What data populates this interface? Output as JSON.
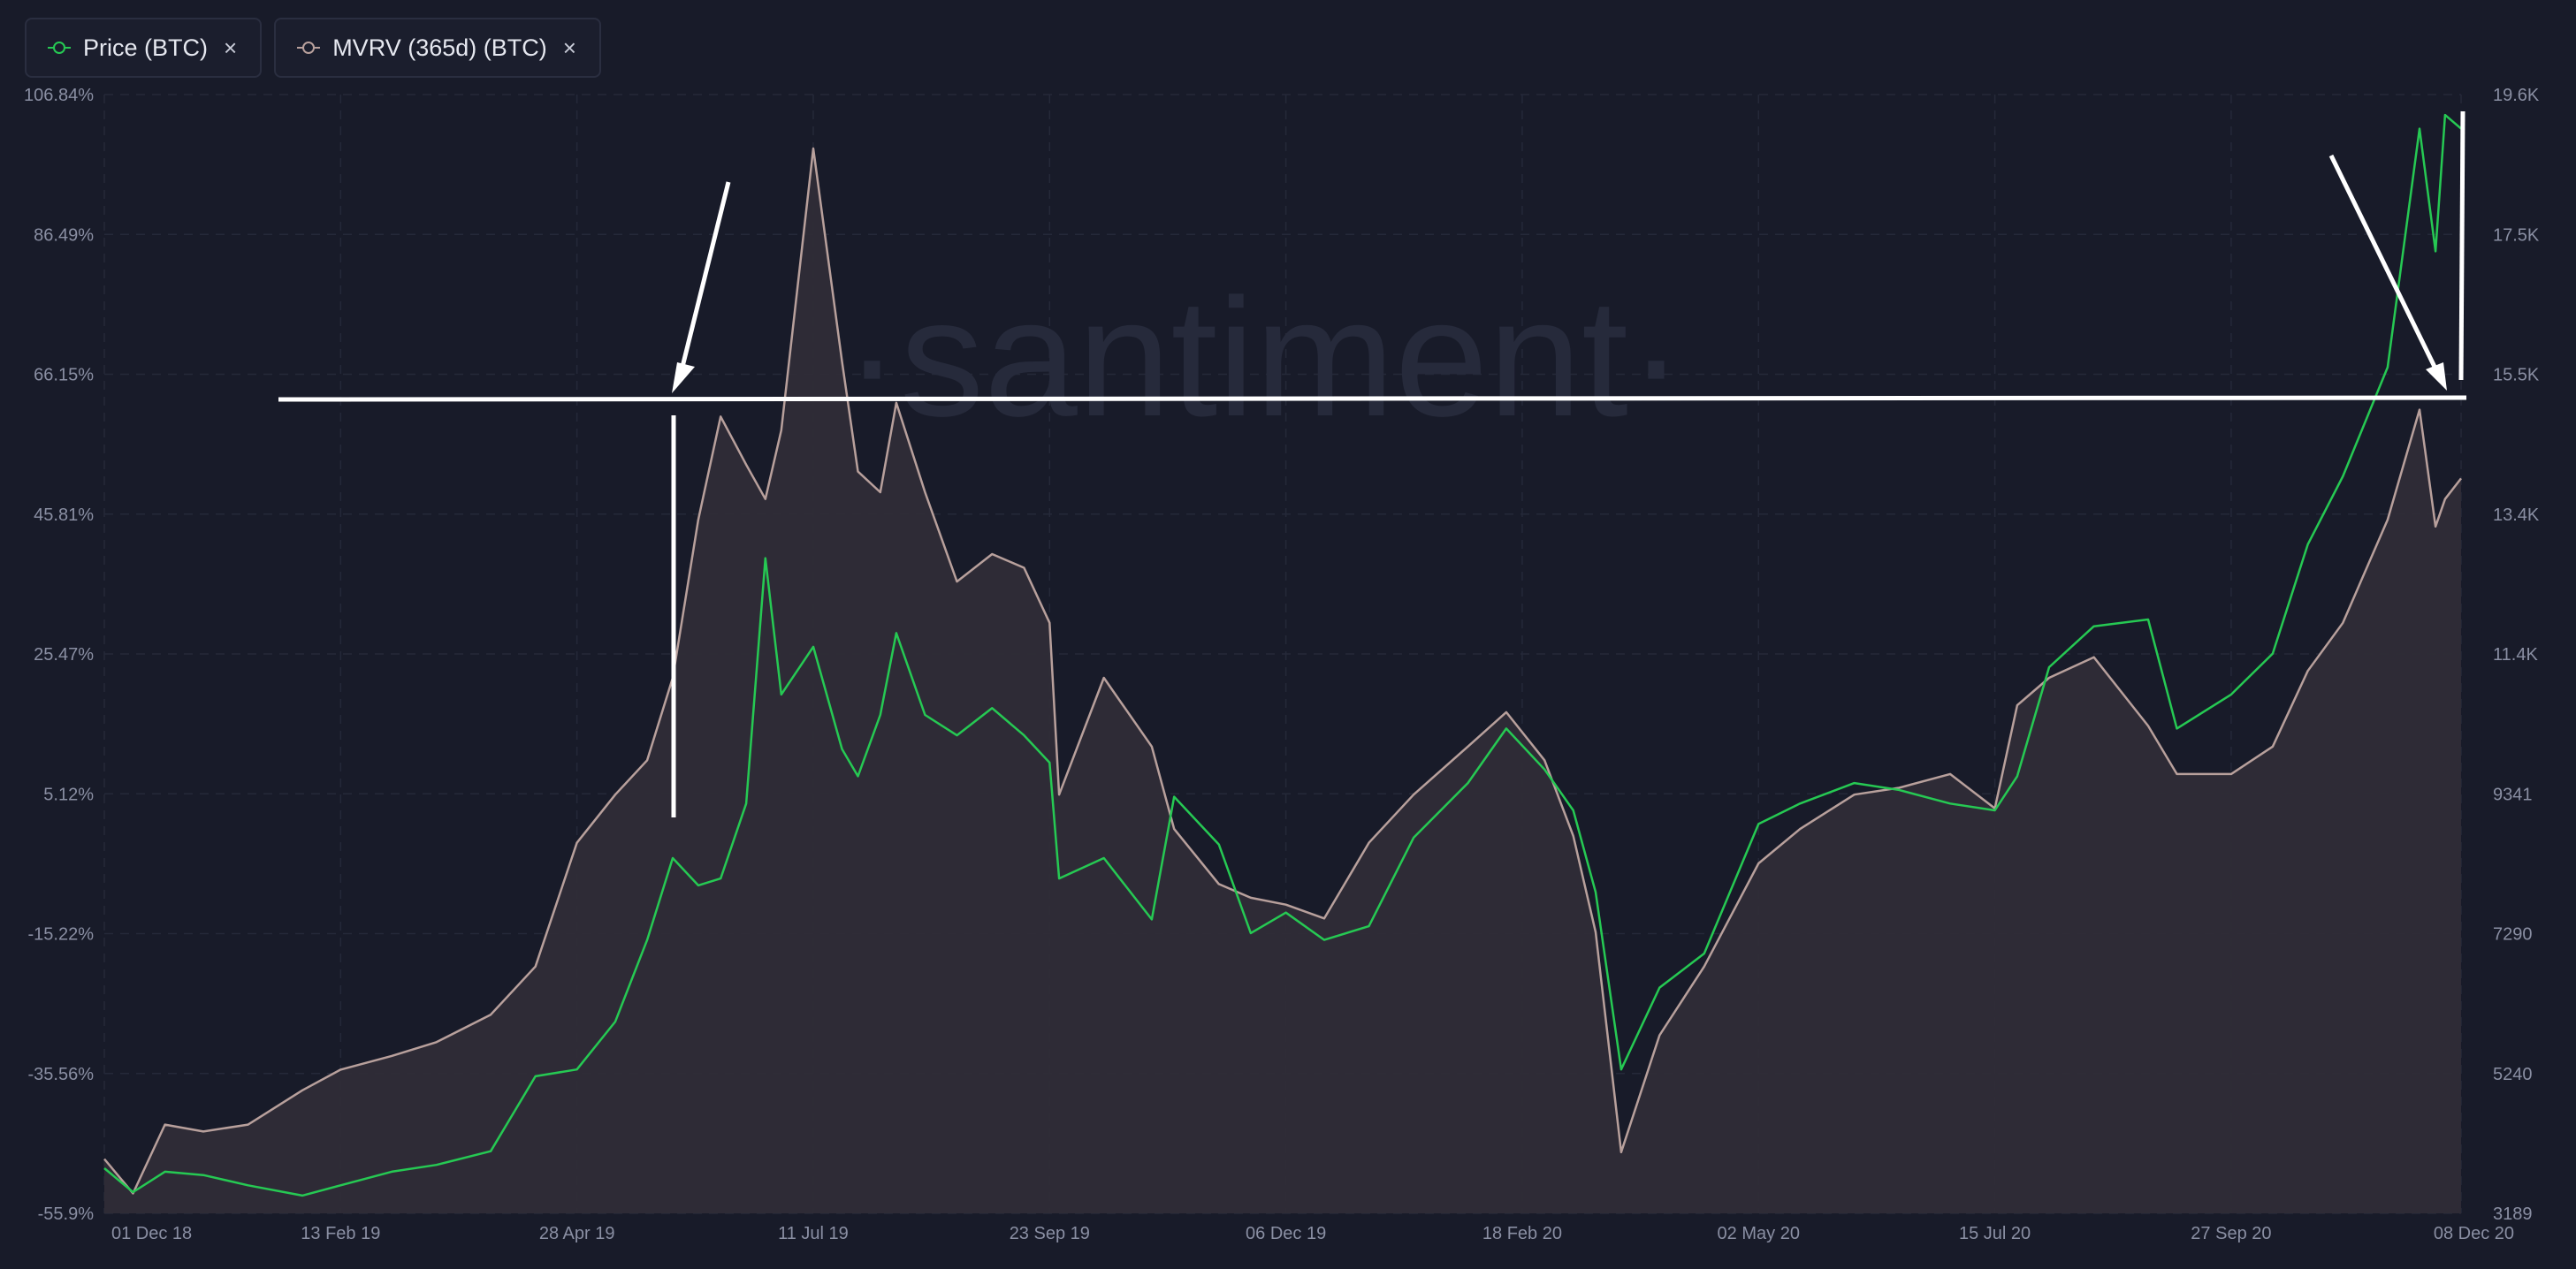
{
  "legend": [
    {
      "label": "Price (BTC)",
      "color": "#26c953",
      "close": "×"
    },
    {
      "label": "MVRV (365d) (BTC)",
      "color": "#b8a09c",
      "close": "×"
    }
  ],
  "watermark": "·santiment·",
  "chart_data": {
    "type": "line",
    "left_axis_ticks": [
      "106.84%",
      "86.49%",
      "66.15%",
      "45.81%",
      "25.47%",
      "5.12%",
      "-15.22%",
      "-35.56%",
      "-55.9%"
    ],
    "right_axis_ticks": [
      "19.6K",
      "17.5K",
      "15.5K",
      "13.4K",
      "11.4K",
      "9341",
      "7290",
      "5240",
      "3189"
    ],
    "x_ticks": [
      "01 Dec 18",
      "13 Feb 19",
      "28 Apr 19",
      "11 Jul 19",
      "23 Sep 19",
      "06 Dec 19",
      "18 Feb 20",
      "02 May 20",
      "15 Jul 20",
      "27 Sep 20",
      "08 Dec 20"
    ],
    "y_left_range": [
      -55.9,
      106.84
    ],
    "y_right_range": [
      3189,
      19600
    ],
    "grid": true,
    "series": [
      {
        "name": "MVRV (365d) (BTC)",
        "axis": "left",
        "color": "#b8a09c",
        "x": [
          "2018-12-01",
          "2018-12-10",
          "2018-12-20",
          "2019-01-01",
          "2019-01-15",
          "2019-02-01",
          "2019-02-13",
          "2019-03-01",
          "2019-03-15",
          "2019-04-01",
          "2019-04-15",
          "2019-04-28",
          "2019-05-10",
          "2019-05-20",
          "2019-05-28",
          "2019-06-05",
          "2019-06-12",
          "2019-06-20",
          "2019-06-26",
          "2019-07-01",
          "2019-07-11",
          "2019-07-20",
          "2019-07-25",
          "2019-08-01",
          "2019-08-06",
          "2019-08-15",
          "2019-08-25",
          "2019-09-05",
          "2019-09-15",
          "2019-09-23",
          "2019-09-26",
          "2019-10-10",
          "2019-10-25",
          "2019-11-01",
          "2019-11-15",
          "2019-11-25",
          "2019-12-06",
          "2019-12-18",
          "2020-01-01",
          "2020-01-15",
          "2020-02-01",
          "2020-02-13",
          "2020-02-25",
          "2020-03-05",
          "2020-03-12",
          "2020-03-20",
          "2020-04-01",
          "2020-04-15",
          "2020-05-02",
          "2020-05-15",
          "2020-06-01",
          "2020-06-15",
          "2020-07-01",
          "2020-07-15",
          "2020-07-22",
          "2020-08-01",
          "2020-08-15",
          "2020-09-01",
          "2020-09-10",
          "2020-09-27",
          "2020-10-10",
          "2020-10-21",
          "2020-11-01",
          "2020-11-15",
          "2020-11-25",
          "2020-11-30",
          "2020-12-03",
          "2020-12-08"
        ],
        "values": [
          -48,
          -53,
          -43,
          -44,
          -43,
          -38,
          -35,
          -33,
          -31,
          -27,
          -20,
          -2,
          5,
          10,
          22,
          45,
          60,
          53,
          48,
          58,
          99,
          68,
          52,
          49,
          62,
          49,
          36,
          40,
          38,
          30,
          5,
          22,
          12,
          0,
          -8,
          -10,
          -11,
          -13,
          -2,
          5,
          12,
          17,
          10,
          -1,
          -15,
          -47,
          -30,
          -20,
          -5,
          0,
          5,
          6,
          8,
          3,
          18,
          22,
          25,
          15,
          8,
          8,
          12,
          23,
          30,
          45,
          61,
          44,
          48,
          51
        ]
      },
      {
        "name": "Price (BTC)",
        "axis": "right",
        "color": "#26c953",
        "x": [
          "2018-12-01",
          "2018-12-10",
          "2018-12-20",
          "2019-01-01",
          "2019-01-15",
          "2019-02-01",
          "2019-02-13",
          "2019-03-01",
          "2019-03-15",
          "2019-04-01",
          "2019-04-15",
          "2019-04-28",
          "2019-05-10",
          "2019-05-20",
          "2019-05-28",
          "2019-06-05",
          "2019-06-12",
          "2019-06-20",
          "2019-06-26",
          "2019-07-01",
          "2019-07-11",
          "2019-07-20",
          "2019-07-25",
          "2019-08-01",
          "2019-08-06",
          "2019-08-15",
          "2019-08-25",
          "2019-09-05",
          "2019-09-15",
          "2019-09-23",
          "2019-09-26",
          "2019-10-10",
          "2019-10-25",
          "2019-11-01",
          "2019-11-15",
          "2019-11-25",
          "2019-12-06",
          "2019-12-18",
          "2020-01-01",
          "2020-01-15",
          "2020-02-01",
          "2020-02-13",
          "2020-02-25",
          "2020-03-05",
          "2020-03-12",
          "2020-03-20",
          "2020-04-01",
          "2020-04-15",
          "2020-05-02",
          "2020-05-15",
          "2020-06-01",
          "2020-06-15",
          "2020-07-01",
          "2020-07-15",
          "2020-07-22",
          "2020-08-01",
          "2020-08-15",
          "2020-09-01",
          "2020-09-10",
          "2020-09-27",
          "2020-10-10",
          "2020-10-21",
          "2020-11-01",
          "2020-11-15",
          "2020-11-25",
          "2020-11-30",
          "2020-12-03",
          "2020-12-08"
        ],
        "values": [
          3850,
          3500,
          3800,
          3750,
          3600,
          3450,
          3600,
          3800,
          3900,
          4100,
          5200,
          5300,
          6000,
          7200,
          8400,
          8000,
          8100,
          9200,
          12800,
          10800,
          11500,
          10000,
          9600,
          10500,
          11700,
          10500,
          10200,
          10600,
          10200,
          9800,
          8100,
          8400,
          7500,
          9300,
          8600,
          7300,
          7600,
          7200,
          7400,
          8700,
          9500,
          10300,
          9700,
          9100,
          7900,
          5300,
          6500,
          7000,
          8900,
          9200,
          9500,
          9400,
          9200,
          9100,
          9600,
          11200,
          11800,
          11900,
          10300,
          10800,
          11400,
          13000,
          14000,
          15600,
          19100,
          17300,
          19300,
          19100
        ]
      }
    ]
  }
}
